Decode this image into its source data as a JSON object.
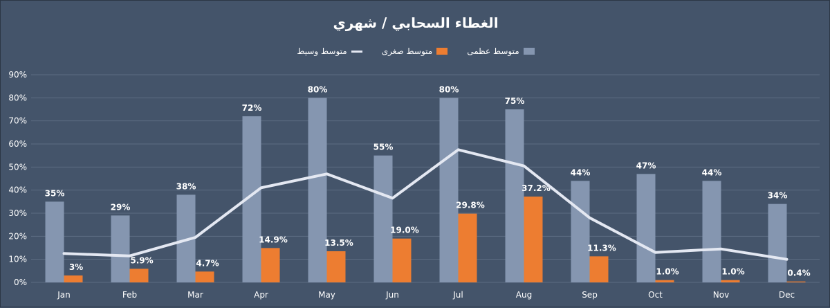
{
  "chart_data": {
    "type": "bar",
    "title": "الغطاء السحابي / شهري",
    "categories": [
      "Jan",
      "Feb",
      "Mar",
      "Apr",
      "May",
      "Jun",
      "Jul",
      "Aug",
      "Sep",
      "Oct",
      "Nov",
      "Dec"
    ],
    "series": [
      {
        "name": "متوسط عظمى",
        "type": "bar",
        "color": "#8596b0",
        "values": [
          35,
          29,
          38,
          72,
          80,
          55,
          80,
          75,
          44,
          47,
          44,
          34
        ],
        "labels": [
          "35%",
          "29%",
          "38%",
          "72%",
          "80%",
          "55%",
          "80%",
          "75%",
          "44%",
          "47%",
          "44%",
          "34%"
        ]
      },
      {
        "name": "متوسط صغرى",
        "type": "bar",
        "color": "#ed7d31",
        "values": [
          3,
          5.9,
          4.7,
          14.9,
          13.5,
          19.0,
          29.8,
          37.2,
          11.3,
          1.0,
          1.0,
          0.4
        ],
        "labels": [
          "3%",
          "5.9%",
          "4.7%",
          "14.9%",
          "13.5%",
          "19.0%",
          "29.8%",
          "37.2%",
          "11.3%",
          "1.0%",
          "1.0%",
          "0.4%"
        ]
      },
      {
        "name": "متوسط وسيط",
        "type": "line",
        "color": "#e4e8f2",
        "values": [
          12.5,
          11.5,
          19.5,
          41,
          47,
          36.5,
          57.5,
          50.5,
          28,
          13,
          14.5,
          10
        ]
      }
    ],
    "ylim": [
      0,
      90
    ],
    "yticks": [
      "0%",
      "10%",
      "20%",
      "30%",
      "40%",
      "50%",
      "60%",
      "70%",
      "80%",
      "90%"
    ],
    "grid": true,
    "legend_position": "top-center"
  }
}
